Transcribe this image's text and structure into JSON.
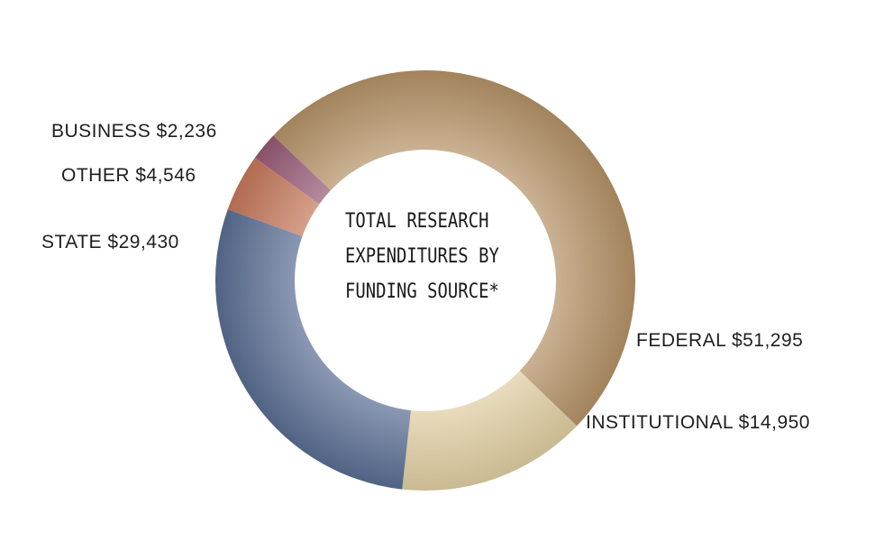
{
  "chart_data": {
    "type": "pie",
    "variant": "donut",
    "title_lines": [
      "TOTAL RESEARCH",
      "EXPENDITURES BY",
      "FUNDING SOURCE*"
    ],
    "slices": [
      {
        "key": "federal",
        "label": "FEDERAL",
        "value": 51295,
        "value_text": "$51,295",
        "color": "#B89568"
      },
      {
        "key": "institutional",
        "label": "INSTITUTIONAL",
        "value": 14950,
        "value_text": "$14,950",
        "color": "#E5D3A6"
      },
      {
        "key": "state",
        "label": "STATE",
        "value": 29430,
        "value_text": "$29,430",
        "color": "#5C7096"
      },
      {
        "key": "other",
        "label": "OTHER",
        "value": 4546,
        "value_text": "$4,546",
        "color": "#C97A5C"
      },
      {
        "key": "business",
        "label": "BUSINESS",
        "value": 2236,
        "value_text": "$2,236",
        "color": "#9A5C78"
      }
    ],
    "legend": "none"
  }
}
